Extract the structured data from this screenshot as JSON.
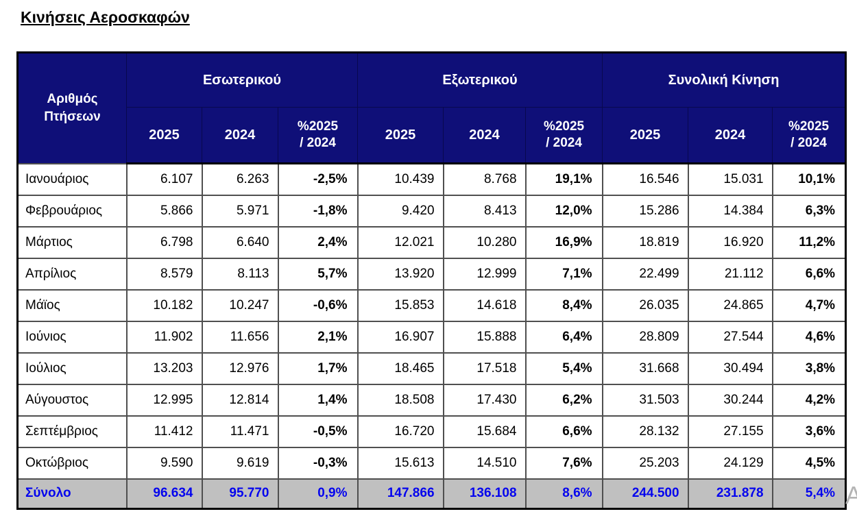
{
  "page": {
    "title": "Κινήσεις Αεροσκαφών",
    "watermark_letter": "Α",
    "colors": {
      "header_bg": "#0f0f78",
      "header_text": "#ffffff",
      "total_row_bg": "#c0c0c0",
      "total_row_text": "#0404ee",
      "grid_line": "#4f4f4f",
      "outer_border": "#000000"
    }
  },
  "table": {
    "corner_header": "Αριθμός Πτήσεων",
    "groups": [
      {
        "label": "Εσωτερικού"
      },
      {
        "label": "Εξωτερικού"
      },
      {
        "label": "Συνολική Κίνηση"
      }
    ],
    "sub_headers": [
      "2025",
      "2024",
      "%2025\n/ 2024"
    ],
    "rows": [
      {
        "month": "Ιανουάριος",
        "cells": [
          "6.107",
          "6.263",
          "-2,5%",
          "10.439",
          "8.768",
          "19,1%",
          "16.546",
          "15.031",
          "10,1%"
        ]
      },
      {
        "month": "Φεβρουάριος",
        "cells": [
          "5.866",
          "5.971",
          "-1,8%",
          "9.420",
          "8.413",
          "12,0%",
          "15.286",
          "14.384",
          "6,3%"
        ]
      },
      {
        "month": "Μάρτιος",
        "cells": [
          "6.798",
          "6.640",
          "2,4%",
          "12.021",
          "10.280",
          "16,9%",
          "18.819",
          "16.920",
          "11,2%"
        ]
      },
      {
        "month": "Απρίλιος",
        "cells": [
          "8.579",
          "8.113",
          "5,7%",
          "13.920",
          "12.999",
          "7,1%",
          "22.499",
          "21.112",
          "6,6%"
        ]
      },
      {
        "month": "Μάϊος",
        "cells": [
          "10.182",
          "10.247",
          "-0,6%",
          "15.853",
          "14.618",
          "8,4%",
          "26.035",
          "24.865",
          "4,7%"
        ]
      },
      {
        "month": "Ιούνιος",
        "cells": [
          "11.902",
          "11.656",
          "2,1%",
          "16.907",
          "15.888",
          "6,4%",
          "28.809",
          "27.544",
          "4,6%"
        ]
      },
      {
        "month": "Ιούλιος",
        "cells": [
          "13.203",
          "12.976",
          "1,7%",
          "18.465",
          "17.518",
          "5,4%",
          "31.668",
          "30.494",
          "3,8%"
        ]
      },
      {
        "month": "Αύγουστος",
        "cells": [
          "12.995",
          "12.814",
          "1,4%",
          "18.508",
          "17.430",
          "6,2%",
          "31.503",
          "30.244",
          "4,2%"
        ]
      },
      {
        "month": "Σεπτέμβριος",
        "cells": [
          "11.412",
          "11.471",
          "-0,5%",
          "16.720",
          "15.684",
          "6,6%",
          "28.132",
          "27.155",
          "3,6%"
        ]
      },
      {
        "month": "Οκτώβριος",
        "cells": [
          "9.590",
          "9.619",
          "-0,3%",
          "15.613",
          "14.510",
          "7,6%",
          "25.203",
          "24.129",
          "4,5%"
        ]
      }
    ],
    "total": {
      "label": "Σύνολο",
      "cells": [
        "96.634",
        "95.770",
        "0,9%",
        "147.866",
        "136.108",
        "8,6%",
        "244.500",
        "231.878",
        "5,4%"
      ]
    }
  }
}
